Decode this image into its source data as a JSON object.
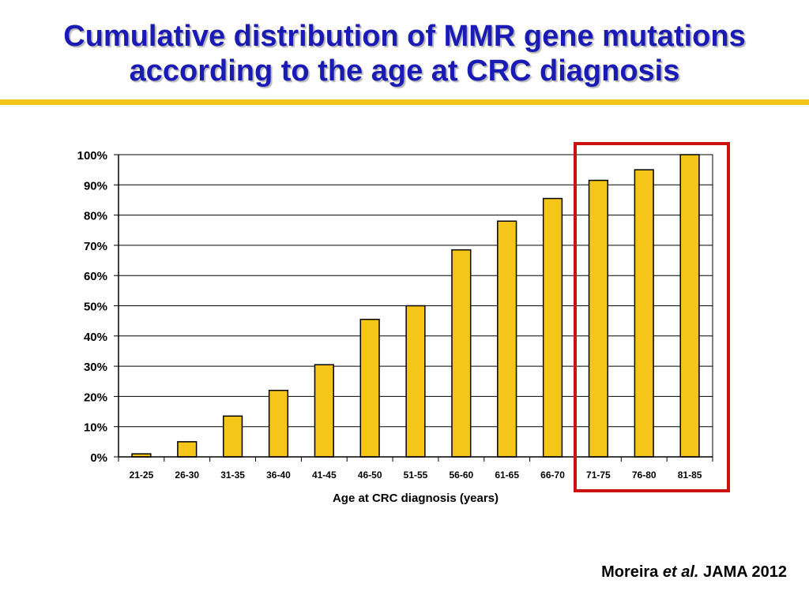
{
  "slide": {
    "title_line1": "Cumulative distribution of MMR gene mutations",
    "title_line2": "according to the age at CRC diagnosis",
    "citation": {
      "author": "Moreira",
      "etal": "et al.",
      "journal": "JAMA 2012"
    }
  },
  "colors": {
    "title": "#1a1ab4",
    "rule": "#f5c518",
    "bar_fill": "#f5c518",
    "bar_edge": "#000000",
    "highlight_box": "#cc1111"
  },
  "chart_data": {
    "type": "bar",
    "categories": [
      "21-25",
      "26-30",
      "31-35",
      "36-40",
      "41-45",
      "46-50",
      "51-55",
      "56-60",
      "61-65",
      "66-70",
      "71-75",
      "76-80",
      "81-85"
    ],
    "values": [
      1,
      5,
      13.5,
      22,
      30.5,
      45.5,
      50,
      68.5,
      78,
      85.5,
      91.5,
      95,
      100
    ],
    "xlabel": "Age at CRC diagnosis (years)",
    "ylabel": "",
    "ylim": [
      0,
      100
    ],
    "yticks": [
      0,
      10,
      20,
      30,
      40,
      50,
      60,
      70,
      80,
      90,
      100
    ],
    "ytick_labels": [
      "0%",
      "10%",
      "20%",
      "30%",
      "40%",
      "50%",
      "60%",
      "70%",
      "80%",
      "90%",
      "100%"
    ],
    "grid": true,
    "highlight_categories": [
      "71-75",
      "76-80",
      "81-85"
    ]
  }
}
